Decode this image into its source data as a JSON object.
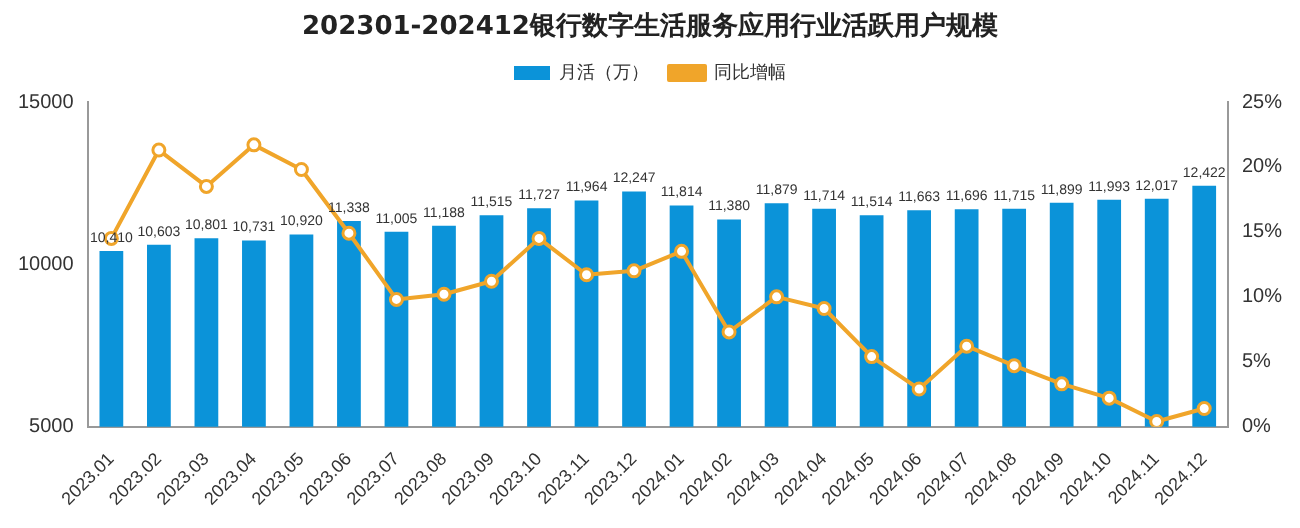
{
  "chart_data": {
    "type": "bar",
    "title": "202301-202412银行数字生活服务应用行业活跃用户规模",
    "categories": [
      "2023.01",
      "2023.02",
      "2023.03",
      "2023.04",
      "2023.05",
      "2023.06",
      "2023.07",
      "2023.08",
      "2023.09",
      "2023.10",
      "2023.11",
      "2023.12",
      "2024.01",
      "2024.02",
      "2024.03",
      "2024.04",
      "2024.05",
      "2024.06",
      "2024.07",
      "2024.08",
      "2024.09",
      "2024.10",
      "2024.11",
      "2024.12"
    ],
    "series": [
      {
        "name": "月活（万）",
        "color": "#0b93d9",
        "values": [
          10410,
          10603,
          10801,
          10731,
          10920,
          11338,
          11005,
          11188,
          11515,
          11727,
          11964,
          12247,
          11814,
          11380,
          11879,
          11714,
          11514,
          11663,
          11696,
          11715,
          11899,
          11993,
          12017,
          12422
        ],
        "value_labels": [
          "10,410",
          "10,603",
          "10,801",
          "10,731",
          "10,920",
          "11,338",
          "11,005",
          "11,188",
          "11,515",
          "11,727",
          "11,964",
          "12,247",
          "11,814",
          "11,380",
          "11,879",
          "11,714",
          "11,514",
          "11,663",
          "11,696",
          "11,715",
          "11,899",
          "11,993",
          "12,017",
          "12,422"
        ]
      },
      {
        "name": "同比增幅",
        "type": "line",
        "axis": "y2",
        "color": "#f0a52a",
        "marker": "circle",
        "values": [
          14.5,
          21.3,
          18.5,
          21.7,
          19.8,
          14.9,
          9.8,
          10.2,
          11.2,
          14.5,
          11.7,
          12.0,
          13.5,
          7.3,
          10.0,
          9.1,
          5.4,
          2.9,
          6.2,
          4.7,
          3.3,
          2.2,
          0.4,
          1.4
        ]
      }
    ],
    "ylim": [
      5000,
      15000
    ],
    "yticks": [
      5000,
      10000,
      15000
    ],
    "y2lim": [
      0,
      25
    ],
    "y2ticks": [
      {
        "value": 0,
        "label": "0%"
      },
      {
        "value": 5,
        "label": "5%"
      },
      {
        "value": 10,
        "label": "10%"
      },
      {
        "value": 15,
        "label": "15%"
      },
      {
        "value": 20,
        "label": "20%"
      },
      {
        "value": 25,
        "label": "25%"
      }
    ],
    "grid": false,
    "legend": "top"
  }
}
